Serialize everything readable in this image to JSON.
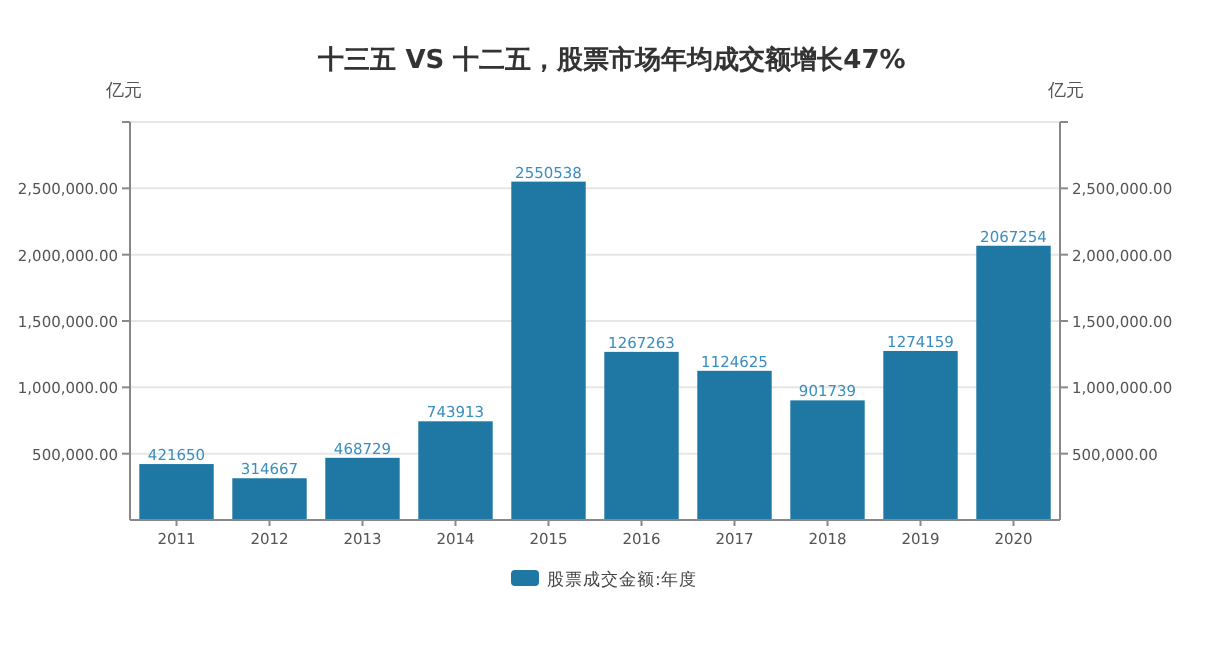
{
  "chart_data": {
    "type": "bar",
    "title": "十三五 VS 十二五，股票市场年均成交额增长47%",
    "ylabel": "亿元",
    "y2label": "亿元",
    "categories": [
      "2011",
      "2012",
      "2013",
      "2014",
      "2015",
      "2016",
      "2017",
      "2018",
      "2019",
      "2020"
    ],
    "series": [
      {
        "name": "股票成交金额:年度",
        "color": "#1f77a4",
        "values": [
          421650,
          314667,
          468729,
          743913,
          2550538,
          1267263,
          1124625,
          901739,
          1274159,
          2067254
        ]
      }
    ],
    "ylim": [
      0,
      3000000
    ],
    "yticks": [
      {
        "value": 500000,
        "label": "500,000.00"
      },
      {
        "value": 1000000,
        "label": "1,000,000.00"
      },
      {
        "value": 1500000,
        "label": "1,500,000.00"
      },
      {
        "value": 2000000,
        "label": "2,000,000.00"
      },
      {
        "value": 2500000,
        "label": "2,500,000.00"
      },
      {
        "value": 3000000,
        "label": null
      }
    ],
    "y2lim": [
      0,
      3000000
    ],
    "y2ticks": [
      {
        "value": 500000,
        "label": "500,000.00"
      },
      {
        "value": 1000000,
        "label": "1,000,000.00"
      },
      {
        "value": 1500000,
        "label": "1,500,000.00"
      },
      {
        "value": 2000000,
        "label": "2,000,000.00"
      },
      {
        "value": 2500000,
        "label": "2,500,000.00"
      },
      {
        "value": 3000000,
        "label": null
      }
    ],
    "grid": "y",
    "legend": "bottom",
    "data_labels": true
  }
}
